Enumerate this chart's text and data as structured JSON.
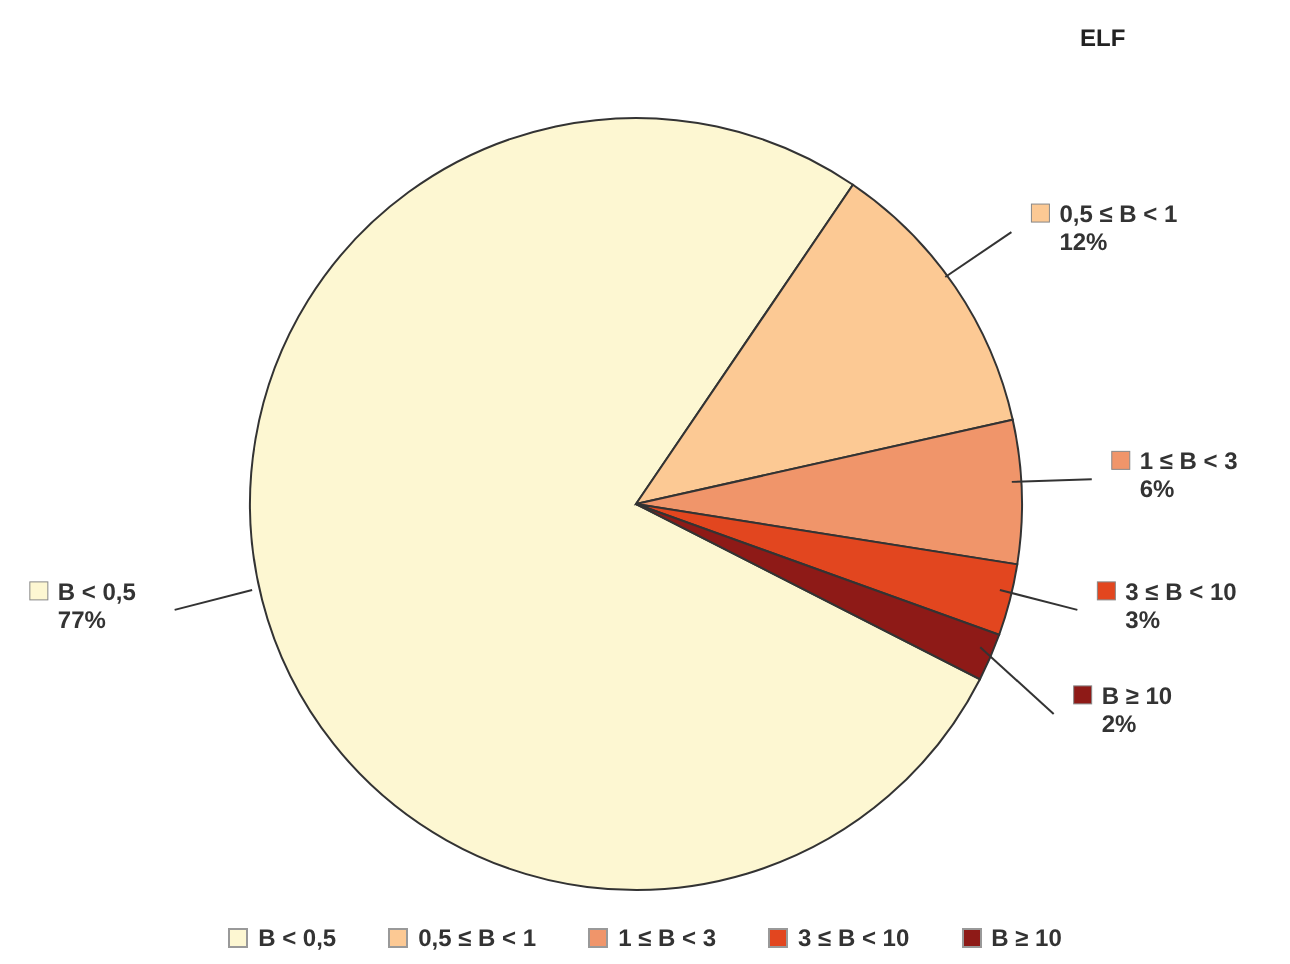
{
  "chart_data": {
    "type": "pie",
    "title": "ELF",
    "categories": [
      "B < 0,5",
      "0,5 ≤ B < 1",
      "1 ≤ B < 3",
      "3 ≤ B < 10",
      "B ≥ 10"
    ],
    "values": [
      77,
      12,
      6,
      3,
      2
    ],
    "colors": [
      "#fdf7d2",
      "#fcc994",
      "#f0956a",
      "#e2461f",
      "#8e1a17"
    ],
    "value_labels": [
      "77%",
      "12%",
      "6%",
      "3%",
      "2%"
    ],
    "legend": "bottom"
  }
}
